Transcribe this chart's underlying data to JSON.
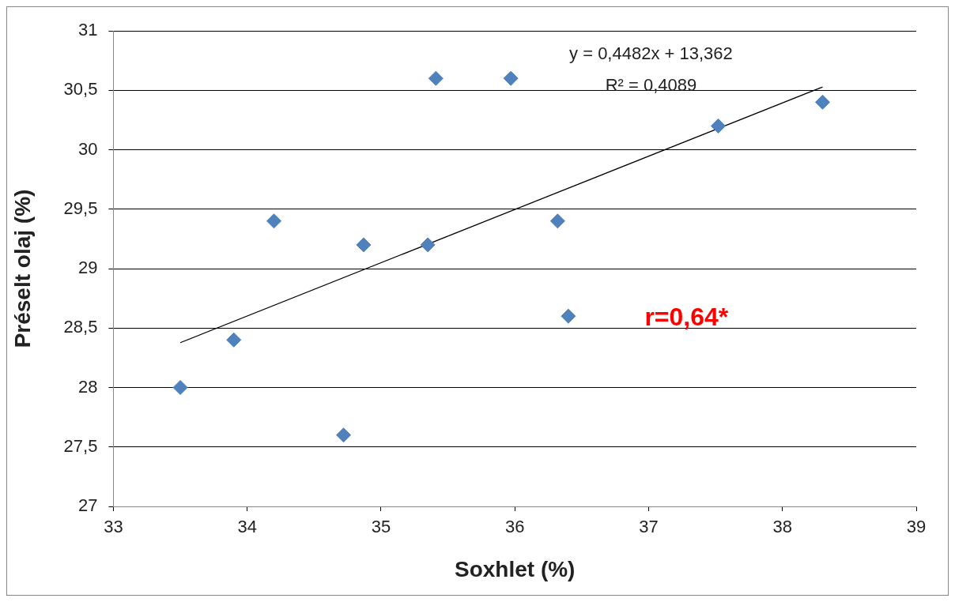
{
  "chart_data": {
    "type": "scatter",
    "xlabel": "Soxhlet (%)",
    "ylabel": "Préselt olaj (%)",
    "annotations": [
      "y = 0,4482x + 13,362",
      "R² = 0,4089",
      "r=0,64*"
    ],
    "series": [
      {
        "marker": "diamond",
        "color": "#4f81bd",
        "x": [
          33.5,
          33.9,
          34.2,
          34.72,
          34.87,
          35.35,
          35.41,
          35.97,
          36.32,
          36.4,
          37.52,
          38.3
        ],
        "values": [
          28.0,
          28.4,
          29.4,
          27.6,
          29.2,
          29.2,
          30.6,
          30.6,
          29.4,
          28.6,
          30.2,
          30.4
        ]
      },
      {
        "type": "line",
        "color": "#000000",
        "x": [
          33.5,
          38.3
        ],
        "values": [
          28.377,
          30.528
        ]
      }
    ],
    "xlim": [
      33,
      39
    ],
    "xticks": [
      33,
      34,
      35,
      36,
      37,
      38,
      39
    ],
    "ylim": [
      27,
      31
    ],
    "yticks": [
      27,
      {
        "value": 27.5,
        "label": "27,5"
      },
      28,
      {
        "value": 28.5,
        "label": "28,5"
      },
      29,
      {
        "value": 29.5,
        "label": "29,5"
      },
      30,
      {
        "value": 30.5,
        "label": "30,5"
      },
      31
    ],
    "grid": "y",
    "legend": false
  }
}
